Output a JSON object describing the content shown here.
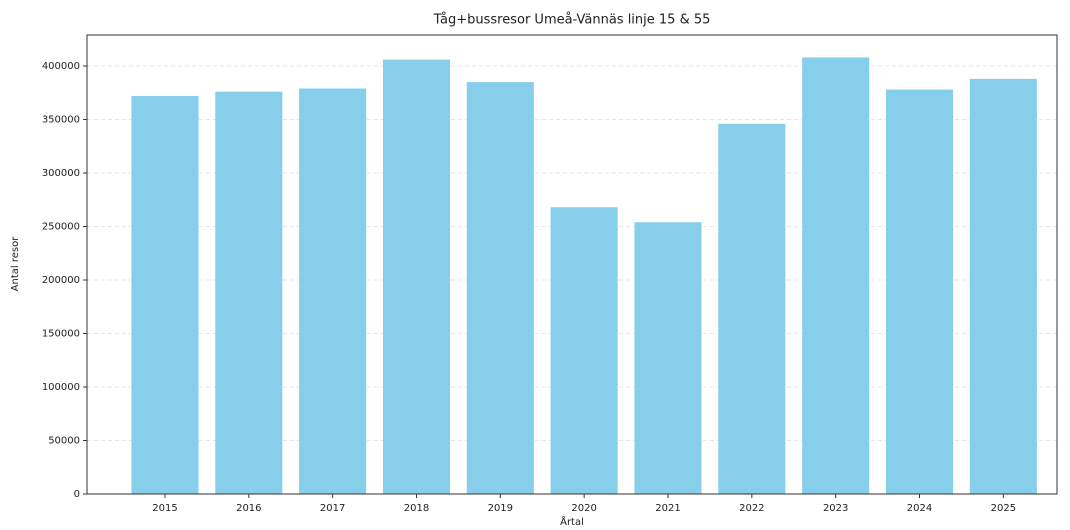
{
  "chart_data": {
    "type": "bar",
    "title": "Tåg+bussresor Umeå-Vännäs linje 15 & 55",
    "xlabel": "Årtal",
    "ylabel": "Antal resor",
    "categories": [
      "2015",
      "2016",
      "2017",
      "2018",
      "2019",
      "2020",
      "2021",
      "2022",
      "2023",
      "2024",
      "2025"
    ],
    "values": [
      372000,
      376000,
      379000,
      406000,
      385000,
      268000,
      254000,
      346000,
      408000,
      378000,
      388000
    ],
    "color": "#87ceeb",
    "ylim": [
      0,
      429000
    ],
    "yticks": [
      0,
      50000,
      100000,
      150000,
      200000,
      250000,
      300000,
      350000,
      400000
    ],
    "grid": true
  }
}
